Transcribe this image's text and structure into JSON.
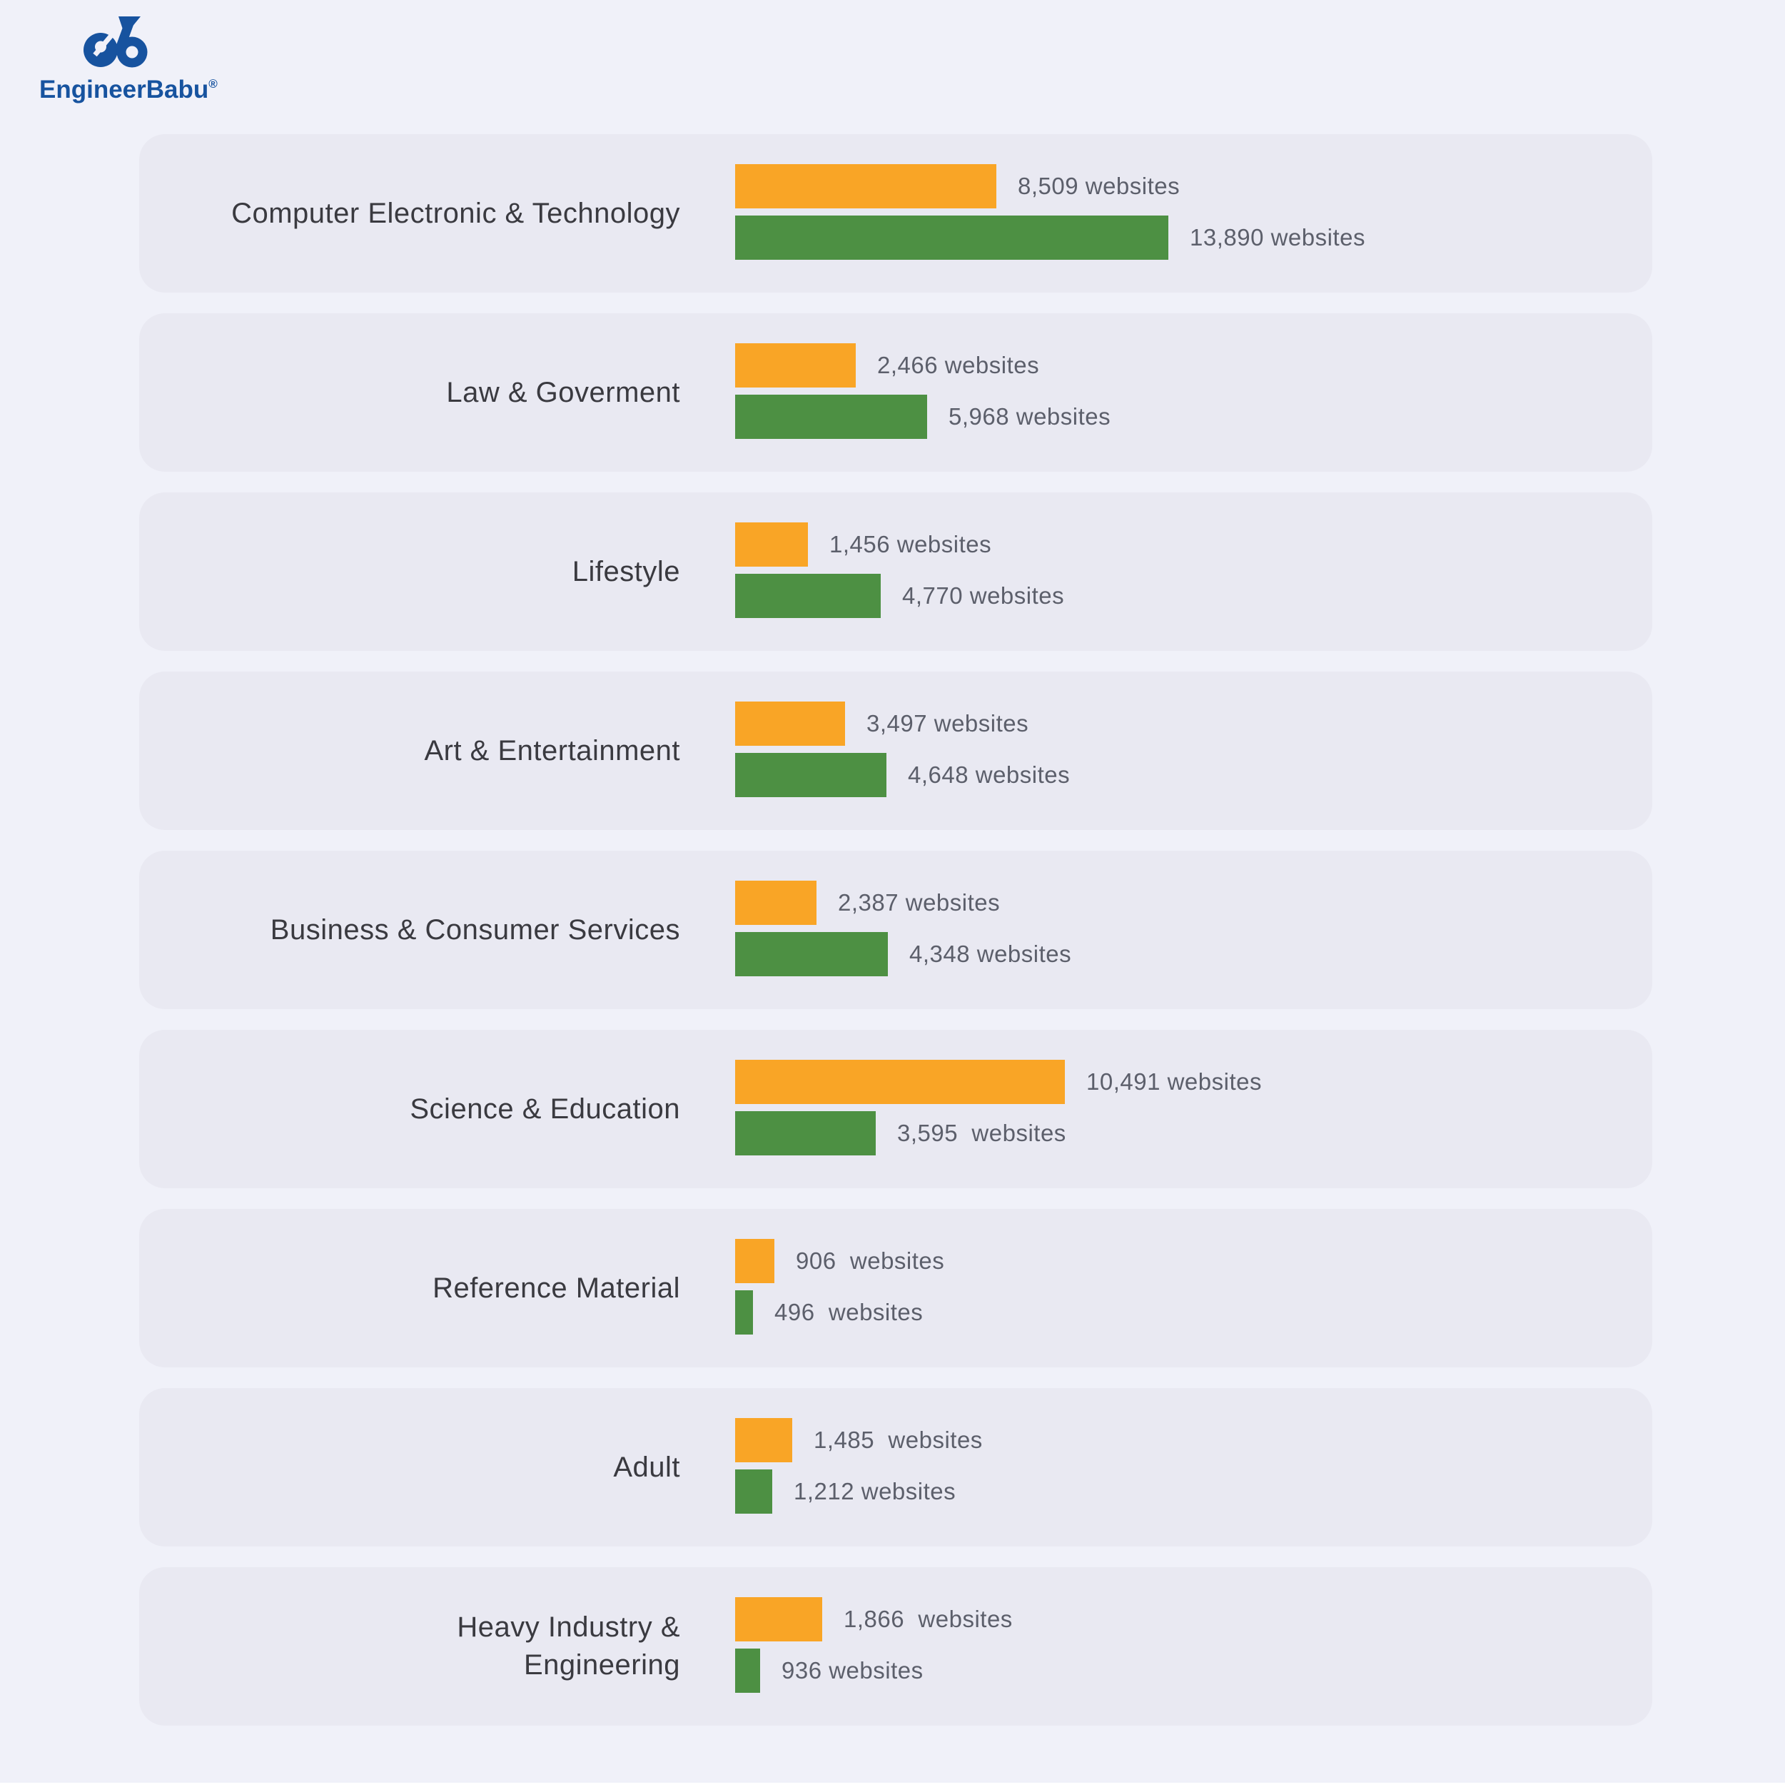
{
  "brand": {
    "name": "EngineerBabu",
    "registered": "®"
  },
  "colors": {
    "orange": "#F9A526",
    "green": "#4D9043",
    "page_bg": "#F0F1F9",
    "card_bg": "#E9E9F2",
    "category_text": "#3A3A40",
    "value_text": "#5C5F6B",
    "brand_blue": "#17539F"
  },
  "rows": [
    {
      "label": "Computer Electronic & Technology",
      "bars": [
        {
          "series": "orange",
          "label": "8,509 websites",
          "px": 366
        },
        {
          "series": "green",
          "label": "13,890 websites",
          "px": 607
        }
      ]
    },
    {
      "label": "Law & Goverment",
      "bars": [
        {
          "series": "orange",
          "label": "2,466 websites",
          "px": 169
        },
        {
          "series": "green",
          "label": "5,968 websites",
          "px": 269
        }
      ]
    },
    {
      "label": "Lifestyle",
      "bars": [
        {
          "series": "orange",
          "label": "1,456 websites",
          "px": 102
        },
        {
          "series": "green",
          "label": "4,770 websites",
          "px": 204
        }
      ]
    },
    {
      "label": "Art & Entertainment",
      "bars": [
        {
          "series": "orange",
          "label": "3,497 websites",
          "px": 154
        },
        {
          "series": "green",
          "label": "4,648 websites",
          "px": 212
        }
      ]
    },
    {
      "label": "Business & Consumer Services",
      "bars": [
        {
          "series": "orange",
          "label": "2,387 websites",
          "px": 114
        },
        {
          "series": "green",
          "label": "4,348 websites",
          "px": 214
        }
      ]
    },
    {
      "label": "Science & Education",
      "bars": [
        {
          "series": "orange",
          "label": "10,491 websites",
          "px": 462
        },
        {
          "series": "green",
          "label": "3,595  websites",
          "px": 197
        }
      ]
    },
    {
      "label": "Reference Material",
      "bars": [
        {
          "series": "orange",
          "label": "906  websites",
          "px": 55
        },
        {
          "series": "green",
          "label": "496  websites",
          "px": 25
        }
      ]
    },
    {
      "label": "Adult",
      "bars": [
        {
          "series": "orange",
          "label": "1,485  websites",
          "px": 80
        },
        {
          "series": "green",
          "label": "1,212 websites",
          "px": 52
        }
      ]
    },
    {
      "label": "Heavy Industry &\nEngineering",
      "bars": [
        {
          "series": "orange",
          "label": "1,866  websites",
          "px": 122
        },
        {
          "series": "green",
          "label": "936 websites",
          "px": 35
        }
      ]
    }
  ],
  "chart_data": {
    "type": "bar",
    "orientation": "horizontal",
    "title": "",
    "unit": "websites",
    "legend": false,
    "categories": [
      "Computer Electronic & Technology",
      "Law & Goverment",
      "Lifestyle",
      "Art & Entertainment",
      "Business & Consumer Services",
      "Science & Education",
      "Reference Material",
      "Adult",
      "Heavy Industry & Engineering"
    ],
    "series": [
      {
        "name": "orange",
        "color": "#F9A526",
        "values": [
          8509,
          2466,
          1456,
          3497,
          2387,
          10491,
          906,
          1485,
          1866
        ]
      },
      {
        "name": "green",
        "color": "#4D9043",
        "values": [
          13890,
          5968,
          4770,
          4648,
          4348,
          3595,
          496,
          1212,
          936
        ]
      }
    ]
  }
}
